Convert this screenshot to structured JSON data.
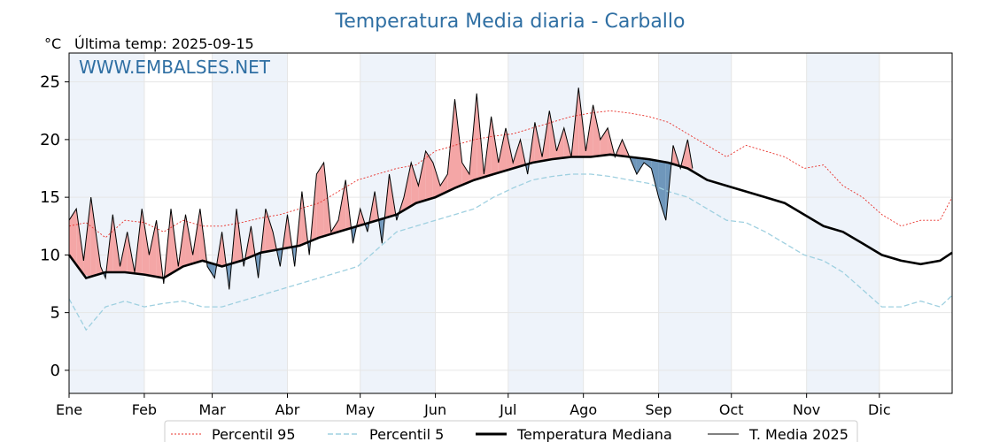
{
  "chart_data": {
    "type": "line",
    "title": "Temperatura Media diaria - Carballo",
    "unit_label": "°C",
    "last_temp_label": "Última temp: 2025-09-15",
    "watermark": "WWW.EMBALSES.NET",
    "ylim": [
      -2,
      27.5
    ],
    "y_ticks": [
      0,
      5,
      10,
      15,
      20,
      25
    ],
    "x_range_days": [
      1,
      365
    ],
    "x_ticks": [
      {
        "label": "Ene",
        "day": 1
      },
      {
        "label": "Feb",
        "day": 32
      },
      {
        "label": "Mar",
        "day": 60
      },
      {
        "label": "Abr",
        "day": 91
      },
      {
        "label": "May",
        "day": 121
      },
      {
        "label": "Jun",
        "day": 152
      },
      {
        "label": "Jul",
        "day": 182
      },
      {
        "label": "Ago",
        "day": 213
      },
      {
        "label": "Sep",
        "day": 244
      },
      {
        "label": "Oct",
        "day": 274
      },
      {
        "label": "Nov",
        "day": 305
      },
      {
        "label": "Dic",
        "day": 335
      }
    ],
    "grid": true,
    "legend_position": "bottom",
    "colors": {
      "p95": "#e8302a",
      "p5": "#9fd0e0",
      "median": "#000000",
      "current": "#000000",
      "above_fill": "#f4a6a6",
      "below_fill": "#6f97bb",
      "band": "#eef3fa"
    },
    "series": [
      {
        "name": "Percentil 95",
        "x": [
          1,
          8,
          16,
          24,
          32,
          40,
          48,
          56,
          64,
          72,
          80,
          88,
          96,
          104,
          112,
          120,
          128,
          136,
          144,
          152,
          160,
          168,
          176,
          184,
          192,
          200,
          208,
          216,
          224,
          232,
          240,
          248,
          256,
          264,
          272,
          280,
          288,
          296,
          304,
          312,
          320,
          328,
          336,
          344,
          352,
          360,
          365
        ],
        "y": [
          12.5,
          12.8,
          11.5,
          13,
          12.8,
          12,
          13,
          12.5,
          12.5,
          12.8,
          13.2,
          13.5,
          14,
          14.5,
          15.5,
          16.5,
          17,
          17.5,
          17.8,
          19,
          19.5,
          20,
          20.3,
          20.5,
          21,
          21.5,
          22,
          22.3,
          22.5,
          22.3,
          22,
          21.5,
          20.5,
          19.5,
          18.5,
          19.5,
          19,
          18.5,
          17.5,
          17.8,
          16,
          15,
          13.5,
          12.5,
          13,
          13,
          15
        ]
      },
      {
        "name": "Percentil 5",
        "x": [
          1,
          8,
          16,
          24,
          32,
          40,
          48,
          56,
          64,
          72,
          80,
          88,
          96,
          104,
          112,
          120,
          128,
          136,
          144,
          152,
          160,
          168,
          176,
          184,
          192,
          200,
          208,
          216,
          224,
          232,
          240,
          248,
          256,
          264,
          272,
          280,
          288,
          296,
          304,
          312,
          320,
          328,
          336,
          344,
          352,
          360,
          365
        ],
        "y": [
          6.2,
          3.5,
          5.5,
          6,
          5.5,
          5.8,
          6,
          5.5,
          5.5,
          6,
          6.5,
          7,
          7.5,
          8,
          8.5,
          9,
          10.5,
          12,
          12.5,
          13,
          13.5,
          14,
          15,
          15.8,
          16.5,
          16.8,
          17,
          17,
          16.8,
          16.5,
          16.2,
          15.5,
          15,
          14,
          13,
          12.8,
          12,
          11,
          10,
          9.5,
          8.5,
          7,
          5.5,
          5.5,
          6,
          5.5,
          6.5
        ]
      },
      {
        "name": "Temperatura Mediana",
        "x": [
          1,
          8,
          16,
          24,
          32,
          40,
          48,
          56,
          64,
          72,
          80,
          88,
          96,
          104,
          112,
          120,
          128,
          136,
          144,
          152,
          160,
          168,
          176,
          184,
          192,
          200,
          208,
          216,
          224,
          232,
          240,
          248,
          256,
          264,
          272,
          280,
          288,
          296,
          304,
          312,
          320,
          328,
          336,
          344,
          352,
          360,
          365
        ],
        "y": [
          10,
          8,
          8.5,
          8.5,
          8.3,
          8,
          9,
          9.5,
          9,
          9.5,
          10.2,
          10.5,
          10.8,
          11.5,
          12,
          12.5,
          13,
          13.5,
          14.5,
          15,
          15.8,
          16.5,
          17,
          17.5,
          18,
          18.3,
          18.5,
          18.5,
          18.7,
          18.5,
          18.3,
          18,
          17.5,
          16.5,
          16,
          15.5,
          15,
          14.5,
          13.5,
          12.5,
          12,
          11,
          10,
          9.5,
          9.2,
          9.5,
          10.2
        ]
      },
      {
        "name": "T. Media 2025",
        "x": [
          1,
          4,
          7,
          10,
          12,
          14,
          16,
          19,
          22,
          25,
          28,
          31,
          34,
          37,
          40,
          43,
          46,
          49,
          52,
          55,
          58,
          61,
          64,
          67,
          70,
          73,
          76,
          79,
          82,
          85,
          88,
          91,
          94,
          97,
          100,
          103,
          106,
          109,
          112,
          115,
          118,
          121,
          124,
          127,
          130,
          133,
          136,
          139,
          142,
          145,
          148,
          151,
          154,
          157,
          160,
          163,
          166,
          169,
          172,
          175,
          178,
          181,
          184,
          187,
          190,
          193,
          196,
          199,
          202,
          205,
          208,
          211,
          214,
          217,
          220,
          223,
          226,
          229,
          232,
          235,
          238,
          241,
          244,
          247,
          250,
          253,
          256,
          258
        ],
        "y": [
          13,
          14,
          9.5,
          15,
          12,
          9,
          8,
          13.5,
          9,
          12,
          8.5,
          14,
          10,
          13,
          7.5,
          14,
          9,
          13.5,
          10,
          14,
          9,
          8,
          12,
          7,
          14,
          9,
          12.5,
          8,
          14,
          12,
          9,
          13.5,
          9,
          15.5,
          10,
          17,
          18,
          12,
          13,
          16.5,
          11,
          14,
          12,
          15.5,
          11,
          17,
          13,
          15,
          18,
          16,
          19,
          18,
          16,
          17,
          23.5,
          18,
          17,
          24,
          17,
          22,
          18,
          21,
          18,
          20,
          17,
          21.5,
          18.5,
          22.5,
          19,
          21,
          18.5,
          24.5,
          19,
          23,
          20,
          21,
          18.5,
          20,
          18.5,
          17,
          18,
          17.5,
          15,
          13,
          19.5,
          17.5,
          20,
          17.5
        ]
      }
    ]
  },
  "legend": {
    "p95": "Percentil 95",
    "p5": "Percentil 5",
    "median": "Temperatura Mediana",
    "current": "T. Media 2025"
  }
}
